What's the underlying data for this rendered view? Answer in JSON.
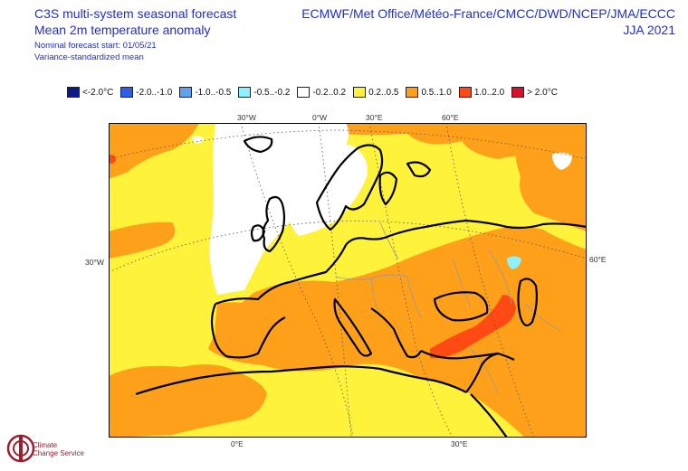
{
  "header": {
    "title_line1": "C3S multi-system seasonal forecast",
    "title_line2": "Mean 2m temperature anomaly",
    "nominal_start": "Nominal forecast start: 01/05/21",
    "mean_type": "Variance-standardized mean",
    "sources": "ECMWF/Met Office/Météo-France/CMCC/DWD/NCEP/JMA/ECCC",
    "season": "JJA 2021"
  },
  "legend": [
    {
      "label": "<-2.0°C",
      "color": "#0b1a8f"
    },
    {
      "label": "-2.0..-1.0",
      "color": "#2f5ee8"
    },
    {
      "label": "-1.0..-0.5",
      "color": "#5fa0f0"
    },
    {
      "label": "-0.5..-0.2",
      "color": "#8ff0ff"
    },
    {
      "label": "-0.2..0.2",
      "color": "#ffffff"
    },
    {
      "label": "0.2..0.5",
      "color": "#fff23a"
    },
    {
      "label": "0.5..1.0",
      "color": "#ffa01a"
    },
    {
      "label": "1.0..2.0",
      "color": "#ff4a14"
    },
    {
      "label": "> 2.0°C",
      "color": "#d8102a"
    }
  ],
  "grid_labels": {
    "top": [
      "30°W",
      "0°W",
      "30°E",
      "60°E"
    ],
    "left": "30°W",
    "right": "60°E",
    "bottom": [
      "0°E",
      "30°E"
    ]
  },
  "logo": {
    "line1": "Climate",
    "line2": "Change Service"
  },
  "colors": {
    "title": "#1f2fd0",
    "yellow": "#fff23a",
    "orange": "#ffa01a",
    "red": "#ff4a14",
    "white": "#ffffff",
    "lightblue": "#8ff0ff",
    "coast": "#000000",
    "border": "#9a9a9a"
  }
}
